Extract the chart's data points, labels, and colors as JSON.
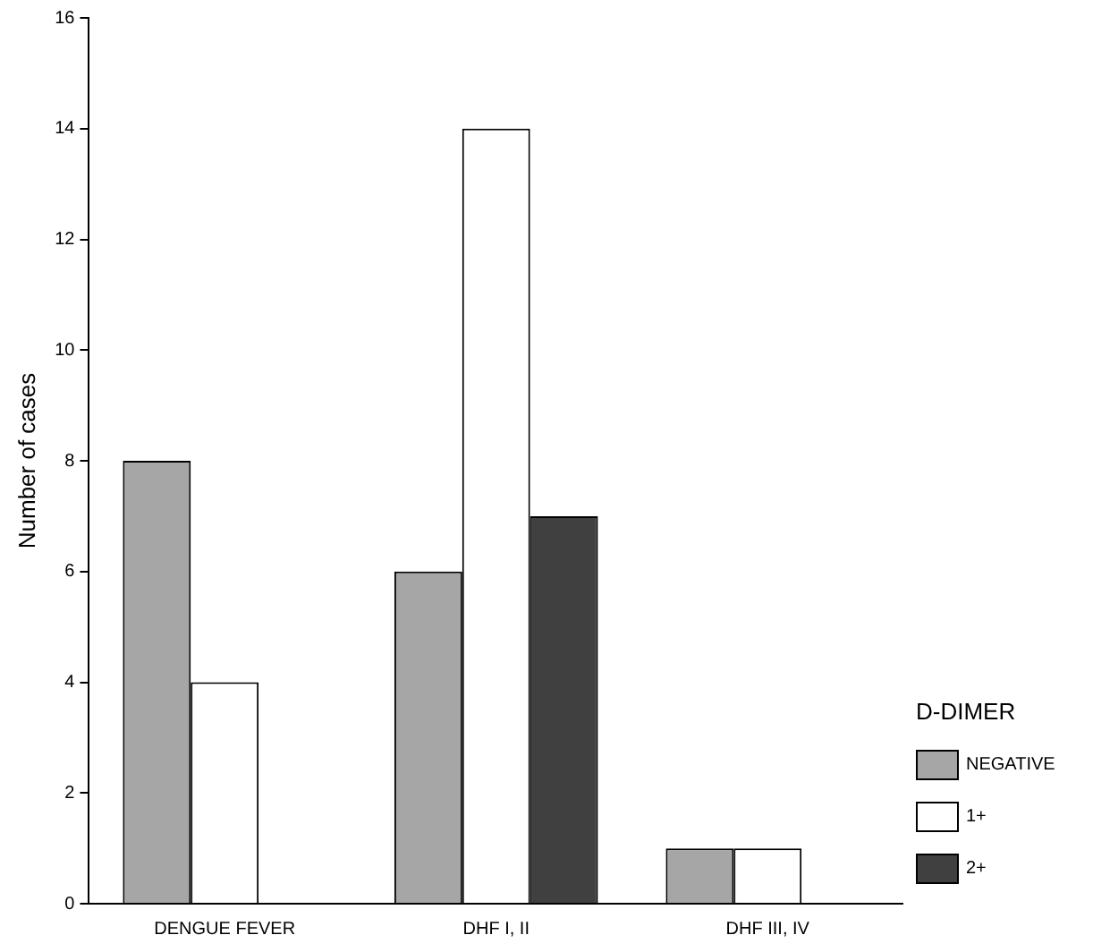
{
  "chart_data": {
    "type": "bar",
    "ylabel": "Number of cases",
    "legend_title": "D-DIMER",
    "categories": [
      "DENGUE FEVER",
      "DHF I, II",
      "DHF III, IV"
    ],
    "series": [
      {
        "name": "NEGATIVE",
        "color": "#a6a6a6",
        "values": [
          8,
          6,
          1
        ]
      },
      {
        "name": "1+",
        "color": "#ffffff",
        "values": [
          4,
          14,
          1
        ]
      },
      {
        "name": "2+",
        "color": "#404040",
        "values": [
          0,
          7,
          0
        ]
      }
    ],
    "ylim": [
      0,
      16
    ],
    "yticks": [
      0,
      2,
      4,
      6,
      8,
      10,
      12,
      14,
      16
    ],
    "grid": false,
    "legend": "right"
  }
}
